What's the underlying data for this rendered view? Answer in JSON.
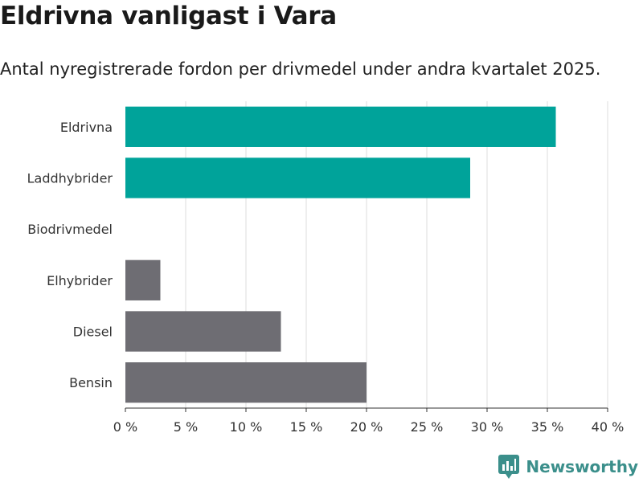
{
  "chart_data": {
    "type": "bar",
    "orientation": "horizontal",
    "title": "Eldrivna vanligast i Vara",
    "subtitle": "Antal nyregistrerade fordon per drivmedel under andra kvartalet 2025.",
    "categories": [
      "Eldrivna",
      "Laddhybrider",
      "Biodrivmedel",
      "Elhybrider",
      "Diesel",
      "Bensin"
    ],
    "values": [
      35.7,
      28.6,
      0,
      2.9,
      12.9,
      20.0
    ],
    "unit": "%",
    "xlim": [
      0,
      40
    ],
    "xticks": [
      0,
      5,
      10,
      15,
      20,
      25,
      30,
      35,
      40
    ],
    "xtick_labels": [
      "0 %",
      "5 %",
      "10 %",
      "15 %",
      "20 %",
      "25 %",
      "30 %",
      "35 %",
      "40 %"
    ],
    "grid": true,
    "bar_colors": [
      "#00a39a",
      "#00a39a",
      "#6e6d73",
      "#6e6d73",
      "#6e6d73",
      "#6e6d73"
    ]
  },
  "branding": {
    "logo_text": "Newsworthy",
    "logo_color": "#3b8f8b"
  }
}
